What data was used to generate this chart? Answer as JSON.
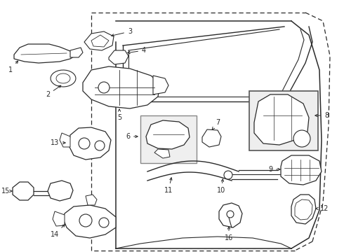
{
  "background_color": "#ffffff",
  "line_color": "#2a2a2a",
  "fig_w": 4.9,
  "fig_h": 3.6,
  "dpi": 100
}
